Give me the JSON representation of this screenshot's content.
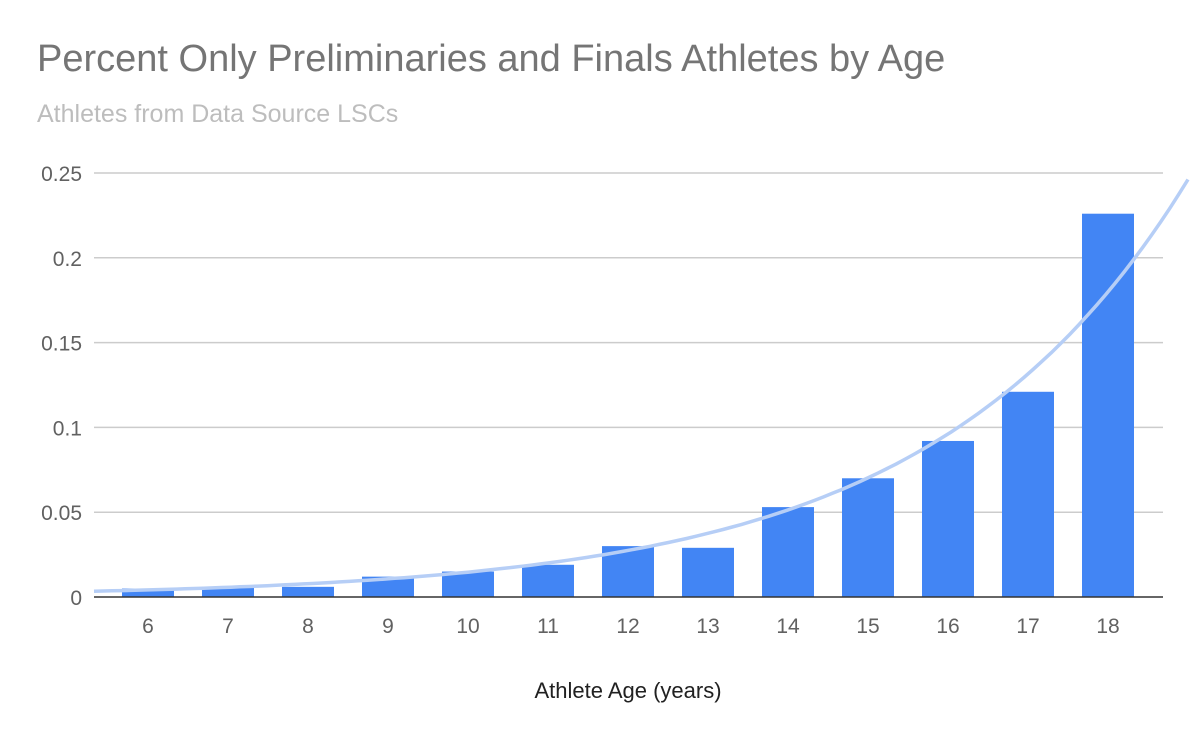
{
  "title": "Percent Only Preliminaries and Finals Athletes by Age",
  "subtitle": "Athletes from Data Source LSCs",
  "chart_data": {
    "type": "bar",
    "title": "Percent Only Preliminaries and Finals Athletes by Age",
    "subtitle": "Athletes from Data Source LSCs",
    "xlabel": "Athlete Age (years)",
    "ylabel": "",
    "categories": [
      "6",
      "7",
      "8",
      "9",
      "10",
      "11",
      "12",
      "13",
      "14",
      "15",
      "16",
      "17",
      "18"
    ],
    "values": [
      0.005,
      0.006,
      0.006,
      0.012,
      0.015,
      0.019,
      0.03,
      0.029,
      0.053,
      0.07,
      0.092,
      0.121,
      0.226
    ],
    "ylim": [
      0,
      0.25
    ],
    "yticks": [
      "0",
      "0.05",
      "0.1",
      "0.15",
      "0.2",
      "0.25"
    ],
    "ytick_values": [
      0,
      0.05,
      0.1,
      0.15,
      0.2,
      0.25
    ],
    "grid": true,
    "trendline": {
      "type": "exponential",
      "color": "#b6cef6"
    },
    "colors": {
      "bar": "#4285f4",
      "grid": "#cccccc",
      "axis": "#333333"
    }
  }
}
